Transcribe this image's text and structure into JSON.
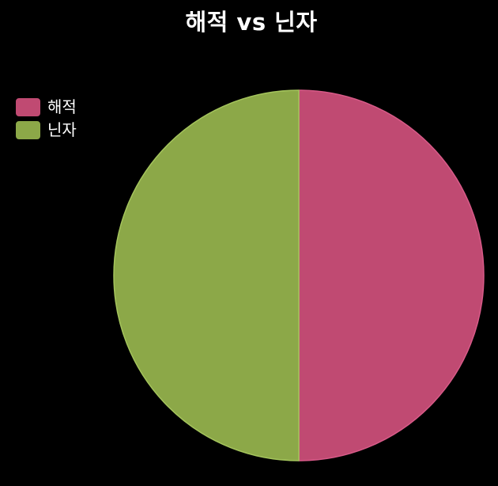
{
  "chart_data": {
    "type": "pie",
    "title": "해적 vs 닌자",
    "categories": [
      "해적",
      "닌자"
    ],
    "values": [
      50,
      50
    ],
    "colors": [
      "#c04a72",
      "#8ca848"
    ],
    "legend_placement": "top-left"
  }
}
